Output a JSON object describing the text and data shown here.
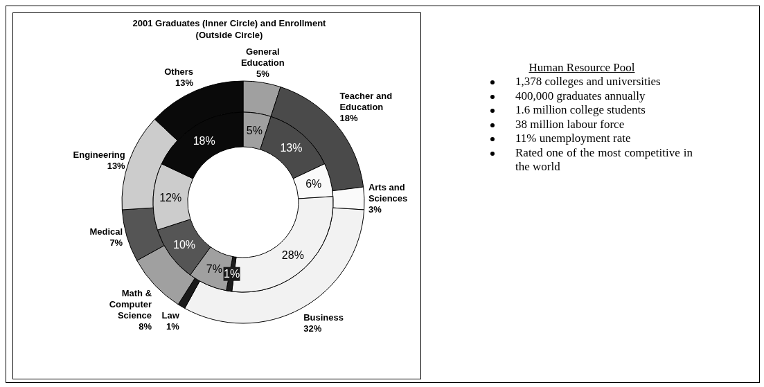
{
  "chart_data": [
    {
      "type": "donut",
      "title": "2001 Graduates (Inner Circle) and Enrollment (Outside Circle)",
      "categories": [
        "General Education",
        "Teacher and Education",
        "Arts and Sciences",
        "Business",
        "Law",
        "Math & Computer Science",
        "Medical",
        "Engineering",
        "Others"
      ],
      "colors": [
        "#a0a0a0",
        "#4a4a4a",
        "#fafafa",
        "#f2f2f2",
        "#1a1a1a",
        "#a0a0a0",
        "#555555",
        "#cccccc",
        "#0a0a0a"
      ],
      "series": [
        {
          "values": [
            5,
            18,
            3,
            32,
            1,
            8,
            7,
            13,
            13
          ],
          "value_labels": [
            "5%",
            "18%",
            "3%",
            "32%",
            "1%",
            "8%",
            "7%",
            "13%",
            "13%"
          ]
        },
        {
          "values": [
            5,
            13,
            6,
            28,
            1,
            7,
            10,
            12,
            18
          ],
          "value_labels": [
            "5%",
            "13%",
            "6%",
            "28%",
            "1%",
            "7%",
            "10%",
            "12%",
            "18%"
          ]
        }
      ]
    },
    {
      "type": "other",
      "title": "Human Resource Pool",
      "annotations": [
        "1,378 colleges and universities",
        "400,000 graduates annually",
        "1.6 million college students",
        "38 million labour force",
        "11% unemployment rate",
        "Rated one of the most competitive in the world"
      ]
    }
  ]
}
